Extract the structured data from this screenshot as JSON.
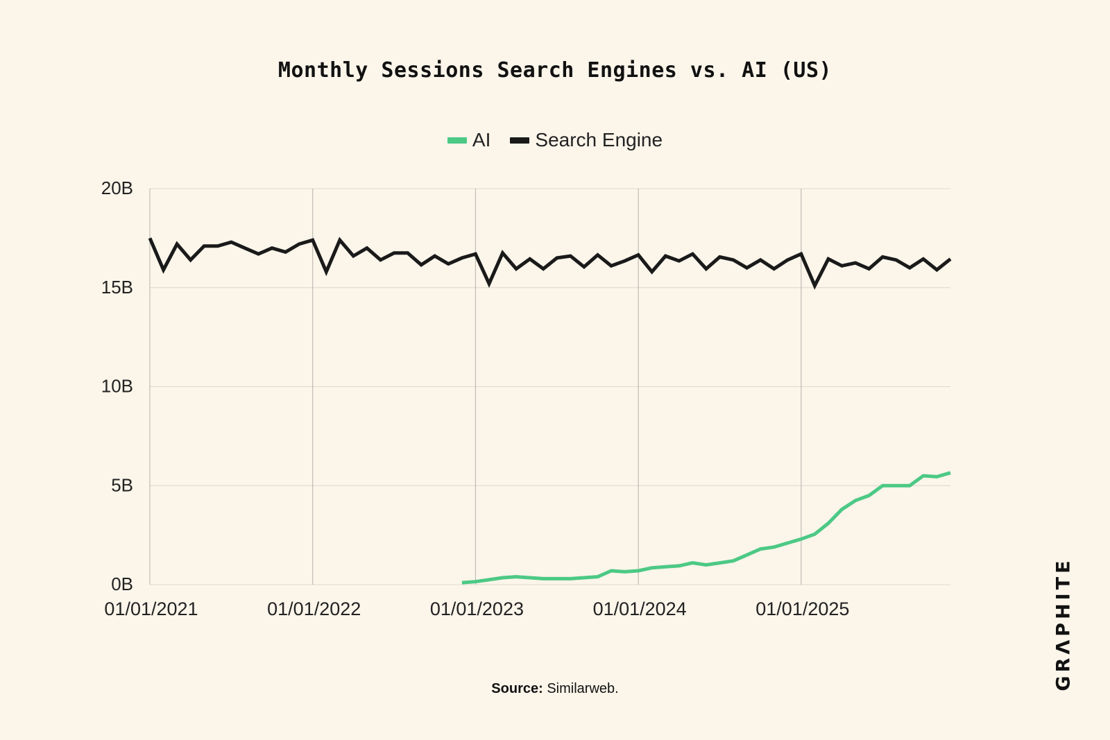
{
  "chart_data": {
    "type": "line",
    "title": "Monthly Sessions Search Engines vs. AI (US)",
    "xlabel": "",
    "ylabel": "",
    "x_ticks": [
      "01/01/2021",
      "01/01/2022",
      "01/01/2023",
      "01/01/2024",
      "01/01/2025"
    ],
    "y_ticks": [
      "0B",
      "5B",
      "10B",
      "15B",
      "20B"
    ],
    "y_tick_values": [
      0,
      5,
      10,
      15,
      20
    ],
    "ylim": [
      0,
      20
    ],
    "y_unit": "B",
    "xlim": [
      "2021-01",
      "2025-12"
    ],
    "grid": {
      "horizontal": true,
      "vertical_at_x_ticks": true
    },
    "legend_position": "top-center",
    "x": [
      "2021-01",
      "2021-02",
      "2021-03",
      "2021-04",
      "2021-05",
      "2021-06",
      "2021-07",
      "2021-08",
      "2021-09",
      "2021-10",
      "2021-11",
      "2021-12",
      "2022-01",
      "2022-02",
      "2022-03",
      "2022-04",
      "2022-05",
      "2022-06",
      "2022-07",
      "2022-08",
      "2022-09",
      "2022-10",
      "2022-11",
      "2022-12",
      "2023-01",
      "2023-02",
      "2023-03",
      "2023-04",
      "2023-05",
      "2023-06",
      "2023-07",
      "2023-08",
      "2023-09",
      "2023-10",
      "2023-11",
      "2023-12",
      "2024-01",
      "2024-02",
      "2024-03",
      "2024-04",
      "2024-05",
      "2024-06",
      "2024-07",
      "2024-08",
      "2024-09",
      "2024-10",
      "2024-11",
      "2024-12",
      "2025-01",
      "2025-02",
      "2025-03",
      "2025-04",
      "2025-05",
      "2025-06",
      "2025-07",
      "2025-08",
      "2025-09",
      "2025-10",
      "2025-11",
      "2025-12"
    ],
    "series": [
      {
        "name": "AI",
        "color": "#4cc985",
        "values": [
          null,
          null,
          null,
          null,
          null,
          null,
          null,
          null,
          null,
          null,
          null,
          null,
          null,
          null,
          null,
          null,
          null,
          null,
          null,
          null,
          null,
          null,
          null,
          0.1,
          0.15,
          0.25,
          0.35,
          0.4,
          0.35,
          0.3,
          0.3,
          0.3,
          0.35,
          0.4,
          0.7,
          0.65,
          0.7,
          0.85,
          0.9,
          0.95,
          1.1,
          1.0,
          1.1,
          1.2,
          1.5,
          1.8,
          1.9,
          2.1,
          2.3,
          2.55,
          3.1,
          3.8,
          4.25,
          4.5,
          5.0,
          5.0,
          5.0,
          5.5,
          5.45,
          5.65
        ]
      },
      {
        "name": "Search Engine",
        "color": "#1a1a1a",
        "values": [
          17.5,
          15.9,
          17.2,
          16.4,
          17.1,
          17.1,
          17.3,
          17.0,
          16.7,
          17.0,
          16.8,
          17.2,
          17.4,
          15.8,
          17.4,
          16.6,
          17.0,
          16.4,
          16.75,
          16.75,
          16.15,
          16.6,
          16.2,
          16.5,
          16.7,
          15.2,
          16.75,
          15.95,
          16.45,
          15.95,
          16.5,
          16.6,
          16.05,
          16.65,
          16.1,
          16.35,
          16.65,
          15.8,
          16.6,
          16.35,
          16.7,
          15.95,
          16.55,
          16.4,
          16.0,
          16.4,
          15.95,
          16.4,
          16.7,
          15.1,
          16.45,
          16.1,
          16.25,
          15.95,
          16.55,
          16.4,
          16.0,
          16.45,
          15.9,
          16.45
        ]
      }
    ]
  },
  "source": {
    "label": "Source:",
    "text": "Similarweb."
  },
  "logo": {
    "text": "GRΛPHITE"
  },
  "colors": {
    "background": "#fbf5ea",
    "grid": "#dcd6cc",
    "vertical_grid": "#b5b2ac"
  }
}
